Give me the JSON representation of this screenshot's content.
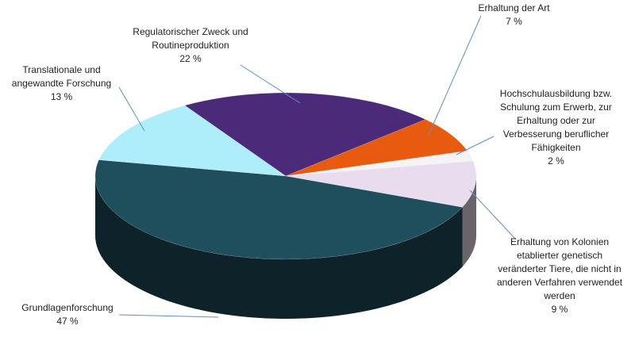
{
  "chart_data": {
    "type": "pie3d",
    "categories": [
      "Regulatorischer Zweck und Routineproduktion",
      "Erhaltung der Art",
      "Hochschulausbildung bzw. Schulung zum Erwerb, zur Erhaltung oder zur Verbesserung beruflicher Fähigkeiten",
      "Erhaltung von Kolonien etablierter genetisch veränderter Tiere, die nicht in anderen Verfahren verwendet werden",
      "Grundlagenforschung",
      "Translationale und angewandte Forschung"
    ],
    "values": [
      22,
      7,
      2,
      9,
      47,
      13
    ],
    "value_labels": [
      "22 %",
      "7 %",
      "2 %",
      "9 %",
      "47 %",
      "13 %"
    ],
    "colors": [
      "#4b2a7a",
      "#e85a10",
      "#f4f4f4",
      "#e9dcef",
      "#1f4e5c",
      "#aeeefa"
    ]
  }
}
